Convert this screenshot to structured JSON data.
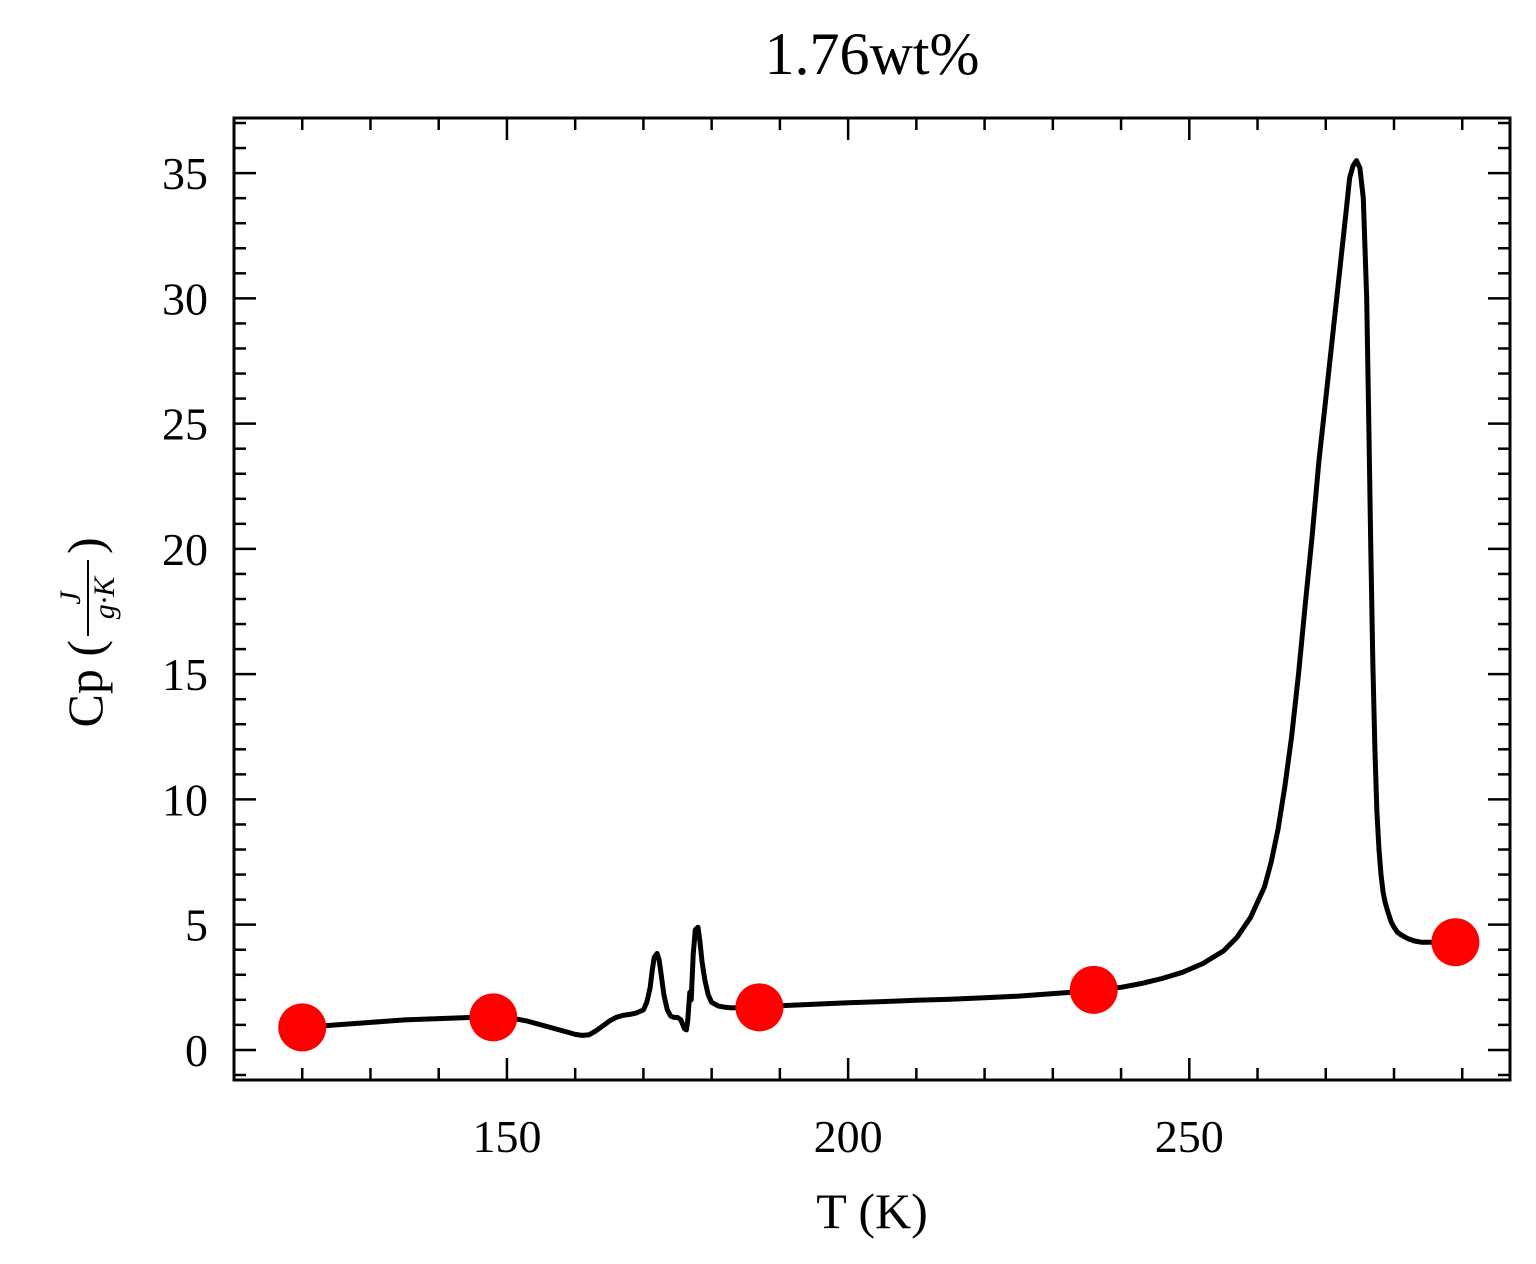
{
  "chart_data": {
    "type": "line",
    "title": "1.76wt%",
    "xlabel": "T (K)",
    "ylabel": {
      "prefix": "Cp (",
      "numerator": "J",
      "denominator": "g·K",
      "suffix": ")"
    },
    "xlim": [
      110,
      297
    ],
    "ylim": [
      -1.2,
      37.2
    ],
    "xticks": [
      150,
      200,
      250
    ],
    "yticks": [
      0,
      5,
      10,
      15,
      20,
      25,
      30,
      35
    ],
    "grid": false,
    "tick_direction": "in",
    "colors": {
      "line": "#000000",
      "markers": "#ff0000"
    },
    "series": [
      {
        "kind": "line",
        "x": [
          120,
          125,
          130,
          135,
          140,
          145,
          148,
          151,
          153,
          155,
          157,
          159,
          160,
          161,
          162,
          163,
          164,
          165,
          166,
          167,
          168,
          169,
          170,
          170.5,
          171,
          171.3,
          171.6,
          172,
          172.3,
          172.6,
          173,
          173.5,
          174,
          174.5,
          175,
          175.5,
          176,
          176.3,
          176.5,
          176.8,
          177,
          177.3,
          177.6,
          178,
          178.3,
          178.6,
          179,
          179.5,
          180,
          181,
          182,
          183,
          185,
          187,
          190,
          195,
          200,
          205,
          210,
          215,
          220,
          225,
          230,
          235,
          240,
          243,
          246,
          249,
          252,
          255,
          257,
          259,
          261,
          262,
          263,
          264,
          265,
          266,
          267,
          268,
          269,
          270,
          271,
          272,
          273,
          273.5,
          274,
          274.5,
          275,
          275.5,
          276,
          276.3,
          276.6,
          276.9,
          277.2,
          277.5,
          277.8,
          278.1,
          278.4,
          278.7,
          279,
          279.3,
          279.6,
          280,
          280.5,
          281,
          282,
          283,
          284,
          285,
          286,
          287,
          288,
          289
        ],
        "y": [
          0.9,
          1.0,
          1.1,
          1.2,
          1.25,
          1.3,
          1.3,
          1.25,
          1.15,
          1.0,
          0.85,
          0.7,
          0.62,
          0.58,
          0.6,
          0.75,
          0.95,
          1.15,
          1.3,
          1.38,
          1.42,
          1.48,
          1.6,
          1.9,
          2.5,
          3.2,
          3.7,
          3.85,
          3.6,
          3.0,
          2.2,
          1.6,
          1.35,
          1.3,
          1.3,
          1.2,
          0.85,
          0.8,
          1.2,
          2.3,
          2.0,
          3.8,
          4.8,
          4.9,
          4.3,
          3.5,
          2.8,
          2.2,
          1.9,
          1.75,
          1.7,
          1.68,
          1.7,
          1.72,
          1.76,
          1.82,
          1.88,
          1.93,
          1.98,
          2.02,
          2.08,
          2.15,
          2.25,
          2.35,
          2.5,
          2.65,
          2.85,
          3.1,
          3.45,
          3.95,
          4.5,
          5.3,
          6.5,
          7.5,
          8.8,
          10.5,
          12.5,
          15.0,
          17.8,
          20.5,
          23.5,
          26.0,
          28.5,
          31.0,
          33.5,
          34.8,
          35.3,
          35.5,
          35.2,
          34.0,
          30.0,
          25.0,
          20.0,
          15.5,
          12.0,
          9.5,
          8.0,
          7.0,
          6.3,
          5.9,
          5.6,
          5.35,
          5.1,
          4.9,
          4.7,
          4.6,
          4.45,
          4.35,
          4.3,
          4.3,
          4.3,
          4.3,
          4.3,
          4.3
        ]
      },
      {
        "kind": "scatter",
        "x": [
          120,
          148,
          187,
          236,
          289
        ],
        "y": [
          0.9,
          1.3,
          1.7,
          2.4,
          4.3
        ]
      }
    ]
  }
}
